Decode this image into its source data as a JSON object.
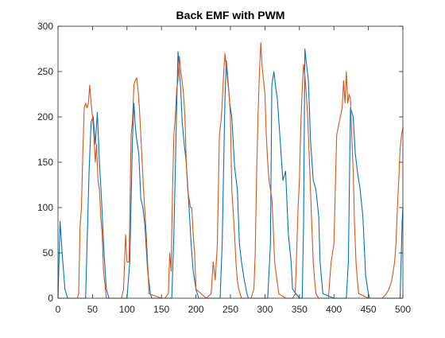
{
  "chart_data": {
    "type": "line",
    "title": "Back EMF with PWM",
    "xlabel": "",
    "ylabel": "",
    "xlim": [
      0,
      500
    ],
    "ylim": [
      0,
      300
    ],
    "xticks": [
      0,
      50,
      100,
      150,
      200,
      250,
      300,
      350,
      400,
      450,
      500
    ],
    "yticks": [
      0,
      50,
      100,
      150,
      200,
      250,
      300
    ],
    "grid": false,
    "legend": "none",
    "series": [
      {
        "color": "#0072BD",
        "x": [
          0,
          3,
          6,
          10,
          14,
          20,
          30,
          40,
          45,
          48,
          51,
          54,
          57,
          60,
          63,
          66,
          70,
          74,
          100,
          104,
          108,
          110,
          112,
          114,
          117,
          120,
          123,
          126,
          130,
          134,
          136,
          140,
          165,
          168,
          172,
          174,
          176,
          178,
          180,
          183,
          186,
          190,
          193,
          196,
          200,
          204,
          208,
          210,
          235,
          238,
          242,
          244,
          246,
          249,
          252,
          256,
          260,
          263,
          266,
          270,
          274,
          276,
          300,
          304,
          308,
          310,
          313,
          316,
          318,
          322,
          326,
          330,
          334,
          338,
          340,
          350,
          354,
          356,
          358,
          360,
          363,
          366,
          370,
          374,
          378,
          380,
          384,
          400,
          418,
          421,
          424,
          426,
          428,
          431,
          434,
          438,
          442,
          446,
          450,
          452,
          470,
          496,
          499,
          500
        ],
        "y": [
          0,
          85,
          50,
          10,
          0,
          0,
          0,
          0,
          140,
          195,
          200,
          170,
          205,
          150,
          110,
          60,
          10,
          0,
          0,
          40,
          175,
          215,
          190,
          175,
          160,
          110,
          100,
          80,
          30,
          5,
          0,
          0,
          0,
          70,
          210,
          272,
          250,
          230,
          195,
          170,
          150,
          100,
          60,
          30,
          10,
          0,
          0,
          0,
          0,
          60,
          220,
          262,
          245,
          215,
          200,
          145,
          120,
          60,
          40,
          20,
          5,
          0,
          0,
          0,
          60,
          235,
          250,
          230,
          220,
          175,
          130,
          140,
          70,
          40,
          10,
          0,
          0,
          80,
          275,
          260,
          240,
          175,
          130,
          120,
          90,
          40,
          5,
          0,
          0,
          40,
          210,
          205,
          200,
          160,
          140,
          120,
          90,
          25,
          5,
          0,
          0,
          0,
          85,
          100
        ]
      },
      {
        "color": "#D95319",
        "x": [
          0,
          20,
          28,
          30,
          32,
          34,
          36,
          38,
          40,
          42,
          44,
          46,
          48,
          50,
          52,
          54,
          56,
          58,
          60,
          62,
          64,
          66,
          70,
          80,
          92,
          95,
          98,
          100,
          103,
          106,
          108,
          110,
          112,
          114,
          116,
          118,
          120,
          124,
          128,
          132,
          150,
          155,
          160,
          162,
          164,
          166,
          168,
          170,
          172,
          174,
          176,
          178,
          180,
          182,
          184,
          186,
          188,
          190,
          192,
          194,
          196,
          198,
          200,
          215,
          222,
          225,
          228,
          231,
          234,
          237,
          240,
          242,
          244,
          246,
          248,
          250,
          252,
          254,
          256,
          258,
          260,
          262,
          264,
          266,
          280,
          284,
          286,
          288,
          290,
          292,
          294,
          296,
          298,
          300,
          302,
          304,
          306,
          308,
          310,
          312,
          314,
          320,
          330,
          340,
          344,
          346,
          348,
          350,
          352,
          354,
          356,
          358,
          360,
          362,
          364,
          366,
          368,
          370,
          372,
          374,
          378,
          385,
          392,
          396,
          400,
          404,
          408,
          412,
          414,
          416,
          418,
          420,
          422,
          424,
          426,
          428,
          430,
          432,
          434,
          436,
          450,
          470,
          476,
          480,
          484,
          488,
          490,
          492,
          494,
          496,
          498,
          500
        ],
        "y": [
          0,
          0,
          0,
          5,
          80,
          100,
          160,
          210,
          215,
          210,
          215,
          235,
          215,
          200,
          180,
          150,
          170,
          130,
          120,
          90,
          70,
          30,
          0,
          0,
          0,
          10,
          70,
          40,
          40,
          180,
          195,
          235,
          240,
          243,
          230,
          210,
          180,
          120,
          70,
          5,
          0,
          0,
          5,
          50,
          30,
          120,
          180,
          200,
          230,
          240,
          267,
          250,
          240,
          225,
          200,
          150,
          120,
          110,
          100,
          100,
          70,
          50,
          10,
          0,
          5,
          40,
          20,
          60,
          180,
          200,
          245,
          270,
          255,
          240,
          225,
          200,
          120,
          95,
          70,
          40,
          20,
          10,
          5,
          0,
          0,
          10,
          50,
          140,
          200,
          250,
          282,
          255,
          240,
          225,
          180,
          150,
          130,
          120,
          110,
          80,
          40,
          5,
          0,
          0,
          5,
          50,
          100,
          130,
          190,
          230,
          258,
          245,
          225,
          200,
          160,
          120,
          80,
          40,
          20,
          5,
          0,
          0,
          0,
          40,
          60,
          180,
          195,
          210,
          240,
          215,
          250,
          215,
          225,
          220,
          175,
          140,
          80,
          40,
          20,
          5,
          0,
          0,
          5,
          10,
          20,
          40,
          60,
          100,
          130,
          165,
          180,
          188
        ]
      }
    ]
  }
}
